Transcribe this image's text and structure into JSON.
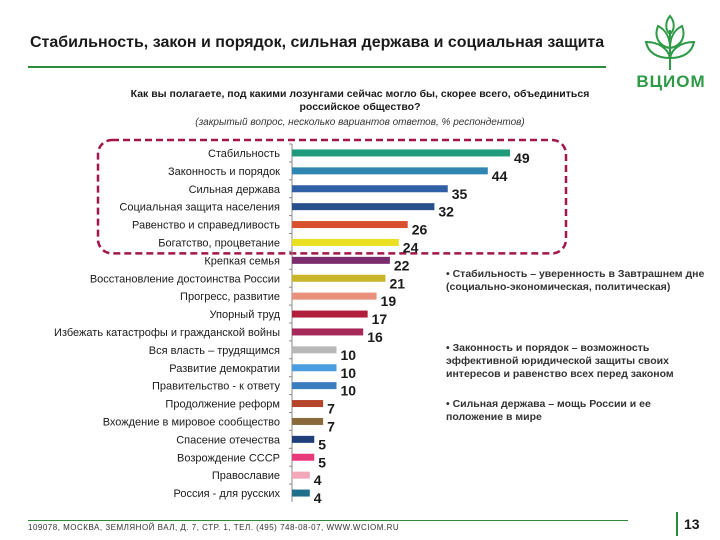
{
  "header": {
    "title": "Стабильность, закон и порядок, сильная держава и социальная защита",
    "logo_text": "ВЦИОМ"
  },
  "question": "Как вы полагаете, под какими лозунгами сейчас могло бы, скорее всего, объединиться российское общество?",
  "note": "(закрытый вопрос, несколько вариантов ответов, % респондентов)",
  "chart_data": {
    "type": "bar",
    "orientation": "horizontal",
    "title": "Как вы полагаете, под какими лозунгами сейчас могло бы, скорее всего, объединиться российское общество?",
    "unit": "% респондентов",
    "categories": [
      "Стабильность",
      "Законность и порядок",
      "Сильная держава",
      "Социальная защита населения",
      "Равенство и справедливость",
      "Богатство, процветание",
      "Крепкая семья",
      "Восстановление достоинства России",
      "Прогресс, развитие",
      "Упорный труд",
      "Избежать катастрофы и гражданской войны",
      "Вся власть – трудящимся",
      "Развитие демократии",
      "Правительство - к ответу",
      "Продолжение реформ",
      "Вхождение в мировое сообщество",
      "Спасение отечества",
      "Возрождение СССР",
      "Православие",
      "Россия - для русских"
    ],
    "values": [
      49,
      44,
      35,
      32,
      26,
      24,
      22,
      21,
      19,
      17,
      16,
      10,
      10,
      10,
      7,
      7,
      5,
      5,
      4,
      4
    ],
    "value_labels": [
      "49",
      "44",
      "35",
      "32",
      "26",
      "24",
      "22",
      "21",
      "19",
      "17",
      "16",
      "10",
      "10",
      "10",
      "7",
      "7",
      "5",
      "5",
      "4",
      "4"
    ],
    "colors": [
      "#1f9a7a",
      "#2f86b3",
      "#2f5fa5",
      "#28508a",
      "#d9502e",
      "#e8e020",
      "#7b2d6e",
      "#c9b52a",
      "#e8907a",
      "#b01e3c",
      "#a52a5a",
      "#b8b8b8",
      "#4a9ee0",
      "#3a7ec0",
      "#b5452a",
      "#8a6a3a",
      "#1f3f7a",
      "#e83a7a",
      "#f2a8b8",
      "#1f6f8a"
    ],
    "xlim": [
      0,
      55
    ],
    "highlighted_rows": 6
  },
  "bullets": [
    "• Стабильность – уверенность в Завтрашнем дне (социально-экономическая, политическая)",
    "• Законность и порядок – возможность эффективной юридической защиты своих интересов и равенство всех перед законом",
    "• Сильная держава – мощь России и ее положение в мире"
  ],
  "colors": {
    "accent": "#2e8b3a",
    "highlight_border": "#a3164a"
  },
  "footer": {
    "address": "109078, МОСКВА, ЗЕМЛЯНОЙ ВАЛ, Д. 7, СТР. 1, ТЕЛ. (495) 748-08-07, WWW.WCIOM.RU"
  },
  "page_number": "13"
}
